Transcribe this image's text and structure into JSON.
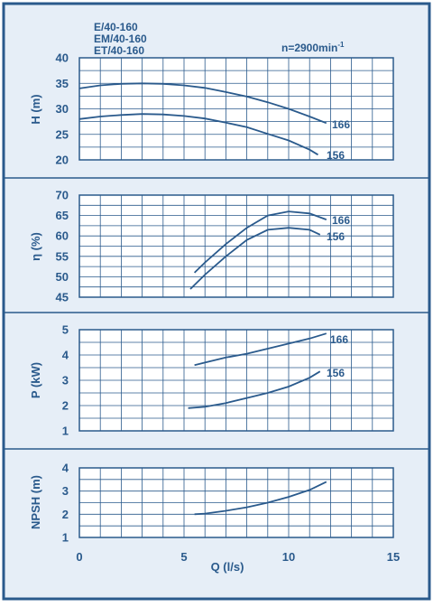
{
  "colors": {
    "primary": "#2a5a8c",
    "background": "#e6eef7",
    "frame": "#2a5a8c"
  },
  "model_lines": [
    "E/40-160",
    "EM/40-160",
    "ET/40-160"
  ],
  "speed_label": "n=2900min",
  "speed_exp": "-1",
  "chart_data": [
    {
      "type": "line",
      "ylabel": "H (m)",
      "ylim": [
        20,
        40
      ],
      "yticks": [
        "20",
        "25",
        "30",
        "35",
        "40"
      ],
      "grid": true,
      "series": [
        {
          "name": "166",
          "x": [
            0,
            1,
            2,
            3,
            4,
            5,
            6,
            7,
            8,
            9,
            10,
            11,
            11.8
          ],
          "y": [
            34,
            34.6,
            34.9,
            35,
            34.9,
            34.6,
            34.1,
            33.3,
            32.4,
            31.3,
            30.0,
            28.5,
            27.2
          ]
        },
        {
          "name": "156",
          "x": [
            0,
            1,
            2,
            3,
            4,
            5,
            6,
            7,
            8,
            9,
            10,
            11,
            11.4
          ],
          "y": [
            28,
            28.5,
            28.8,
            29,
            28.9,
            28.6,
            28.1,
            27.3,
            26.4,
            25.1,
            23.8,
            22.0,
            21.0
          ]
        }
      ]
    },
    {
      "type": "line",
      "ylabel": "η (%)",
      "ylim": [
        45,
        70
      ],
      "yticks": [
        "45",
        "50",
        "55",
        "60",
        "65",
        "70"
      ],
      "grid": true,
      "series": [
        {
          "name": "166",
          "x": [
            5.5,
            6,
            7,
            8,
            9,
            10,
            11,
            11.8
          ],
          "y": [
            51,
            53.5,
            58,
            62,
            65,
            66,
            65.5,
            64
          ]
        },
        {
          "name": "156",
          "x": [
            5.3,
            6,
            7,
            8,
            9,
            10,
            11,
            11.5
          ],
          "y": [
            47,
            50.5,
            55,
            59,
            61.5,
            62,
            61.5,
            60.3
          ]
        }
      ]
    },
    {
      "type": "line",
      "ylabel": "P (kW)",
      "ylim": [
        1,
        5
      ],
      "yticks": [
        "1",
        "2",
        "3",
        "4",
        "5"
      ],
      "grid": true,
      "series": [
        {
          "name": "166",
          "x": [
            5.5,
            6,
            7,
            8,
            9,
            10,
            11,
            11.8
          ],
          "y": [
            3.6,
            3.7,
            3.9,
            4.05,
            4.25,
            4.45,
            4.65,
            4.85
          ]
        },
        {
          "name": "156",
          "x": [
            5.2,
            6,
            7,
            8,
            9,
            10,
            11,
            11.5
          ],
          "y": [
            1.9,
            1.95,
            2.1,
            2.3,
            2.5,
            2.75,
            3.1,
            3.35
          ]
        }
      ]
    },
    {
      "type": "line",
      "ylabel": "NPSH (m)",
      "xlabel": "Q (l/s)",
      "ylim": [
        1,
        4
      ],
      "xlim": [
        0,
        15
      ],
      "yticks": [
        "1",
        "2",
        "3",
        "4"
      ],
      "xticks": [
        "0",
        "5",
        "10",
        "15"
      ],
      "grid": true,
      "series": [
        {
          "x": [
            5.5,
            6,
            7,
            8,
            9,
            10,
            11,
            11.8
          ],
          "y": [
            2.0,
            2.03,
            2.15,
            2.3,
            2.5,
            2.75,
            3.05,
            3.4
          ]
        }
      ]
    }
  ]
}
